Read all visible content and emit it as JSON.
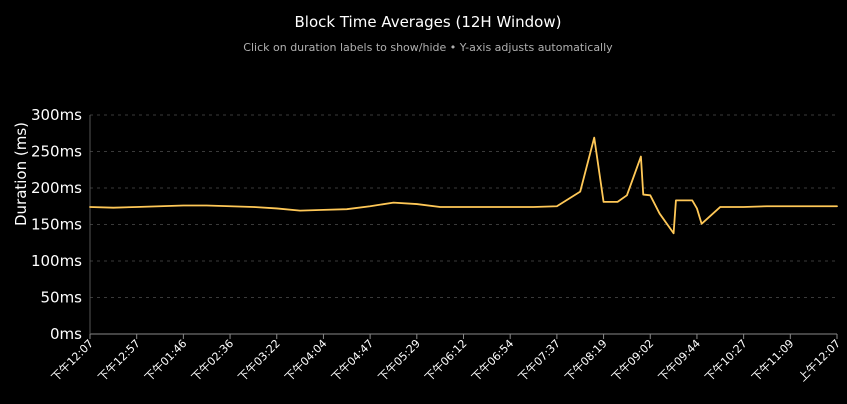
{
  "chart_data": {
    "type": "line",
    "title": "Block Time Averages (12H Window)",
    "subtitle": "Click on duration labels to show/hide • Y-axis adjusts automatically",
    "ylabel": "Duration (ms)",
    "xlabel": "",
    "ylim": [
      0,
      300
    ],
    "yticks": [
      {
        "value": 0,
        "label": "0ms"
      },
      {
        "value": 50,
        "label": "50ms"
      },
      {
        "value": 100,
        "label": "100ms"
      },
      {
        "value": 150,
        "label": "150ms"
      },
      {
        "value": 200,
        "label": "200ms"
      },
      {
        "value": 250,
        "label": "250ms"
      },
      {
        "value": 300,
        "label": "300ms"
      }
    ],
    "x_tick_labels": [
      "下午12:07",
      "下午12:57",
      "下午01:46",
      "下午02:36",
      "下午03:22",
      "下午04:04",
      "下午04:47",
      "下午05:29",
      "下午06:12",
      "下午06:54",
      "下午07:37",
      "下午08:19",
      "下午09:02",
      "下午09:44",
      "下午10:27",
      "下午11:09",
      "上午12:07"
    ],
    "grid": true,
    "line_color": "#ffc857",
    "grid_color": "#3a3a3a",
    "series": [
      {
        "x": [
          0,
          0.5,
          1,
          1.5,
          2,
          2.5,
          3,
          3.5,
          4,
          4.5,
          5,
          5.5,
          6,
          6.5,
          7,
          7.5,
          8,
          8.5,
          9,
          9.5,
          10,
          10.5,
          10.8,
          11.0,
          11.05,
          11.3,
          11.5,
          11.8,
          11.85,
          12.0,
          12.2,
          12.5,
          12.55,
          12.9,
          13.0,
          13.1,
          13.5,
          14,
          14.5,
          15,
          15.5,
          16
        ],
        "y": [
          174,
          173,
          174,
          175,
          176,
          176,
          175,
          174,
          172,
          169,
          170,
          171,
          175,
          180,
          178,
          174,
          174,
          174,
          174,
          174,
          175,
          195,
          269,
          181,
          181,
          181,
          190,
          243,
          191,
          190,
          165,
          138,
          183,
          183,
          172,
          151,
          174,
          174,
          175,
          175,
          175,
          175
        ]
      }
    ]
  }
}
